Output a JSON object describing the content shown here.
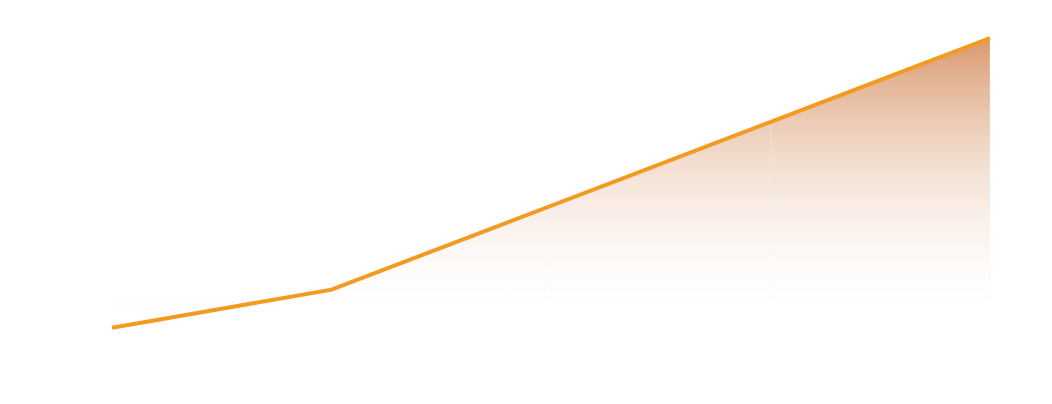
{
  "colors": {
    "line": "#f39a21",
    "fill_top": "#d9986c",
    "fill_bottom": "#ffffff",
    "divider": "#f3f3f3",
    "background": "#ffffff"
  },
  "chart_data": {
    "type": "area",
    "x": [
      1,
      2,
      3,
      4,
      5
    ],
    "series": [
      {
        "values": [
          5,
          10,
          21,
          32,
          43
        ]
      }
    ],
    "ylim": [
      -5,
      48
    ],
    "grid": false,
    "legend": "none",
    "fill": "vertical-gradient"
  }
}
